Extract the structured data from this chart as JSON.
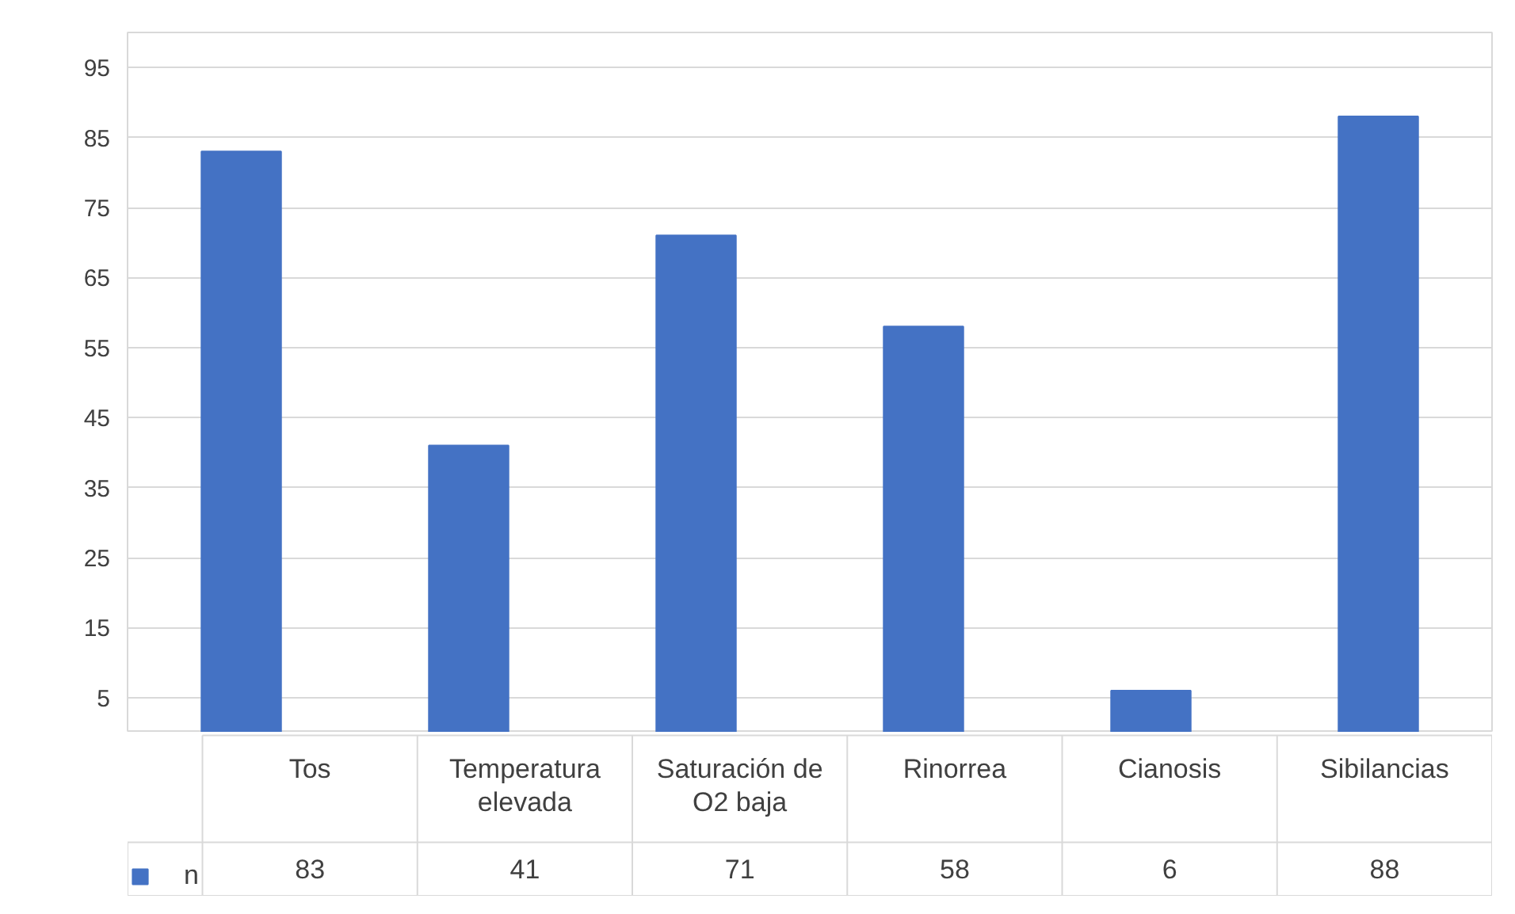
{
  "chart_data": {
    "type": "bar",
    "categories": [
      "Tos",
      "Temperatura elevada",
      "Saturación de O2 baja",
      "Rinorrea",
      "Cianosis",
      "Sibilancias"
    ],
    "series": [
      {
        "name": "n",
        "color": "#4472c4",
        "values": [
          83,
          41,
          71,
          58,
          6,
          88
        ]
      }
    ],
    "ylim": [
      0,
      100
    ],
    "yticks": [
      5,
      15,
      25,
      35,
      45,
      55,
      65,
      75,
      85,
      95
    ],
    "grid": "y",
    "legend": "bottom left",
    "data_labels": true
  }
}
